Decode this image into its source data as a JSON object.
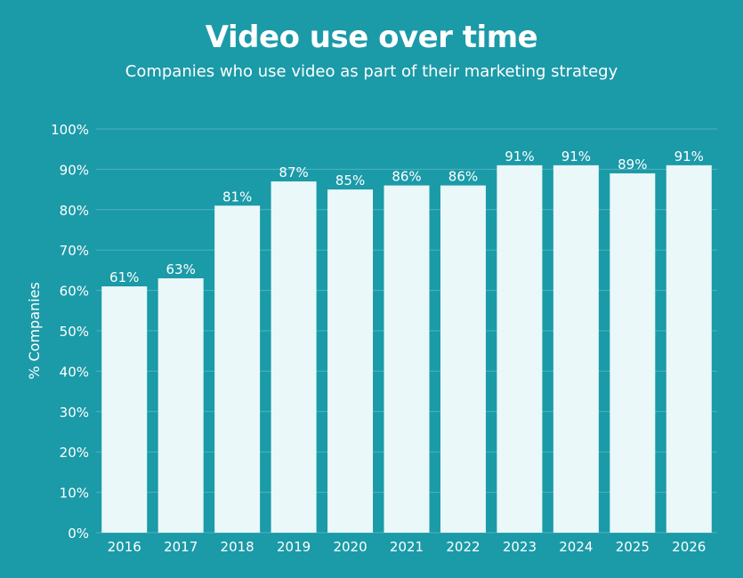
{
  "chart_data": {
    "type": "bar",
    "title": "Video use over time",
    "subtitle": "Companies who use video as part of their marketing strategy",
    "xlabel": "",
    "ylabel": "% Companies",
    "categories": [
      "2016",
      "2017",
      "2018",
      "2019",
      "2020",
      "2021",
      "2022",
      "2023",
      "2024",
      "2025",
      "2026"
    ],
    "values": [
      61,
      63,
      81,
      87,
      85,
      86,
      86,
      91,
      91,
      89,
      91
    ],
    "value_labels": [
      "61%",
      "63%",
      "81%",
      "87%",
      "85%",
      "86%",
      "86%",
      "91%",
      "91%",
      "89%",
      "91%"
    ],
    "ylim": [
      0,
      100
    ],
    "yticks": [
      0,
      10,
      20,
      30,
      40,
      50,
      60,
      70,
      80,
      90,
      100
    ],
    "ytick_labels": [
      "0%",
      "10%",
      "20%",
      "30%",
      "40%",
      "50%",
      "60%",
      "70%",
      "80%",
      "90%",
      "100%"
    ],
    "grid": true,
    "legend": "none",
    "colors": {
      "background": "#1b9aa8",
      "bar": "#eaf8f9",
      "grid": "#4fb3be",
      "text": "#ffffff"
    }
  }
}
